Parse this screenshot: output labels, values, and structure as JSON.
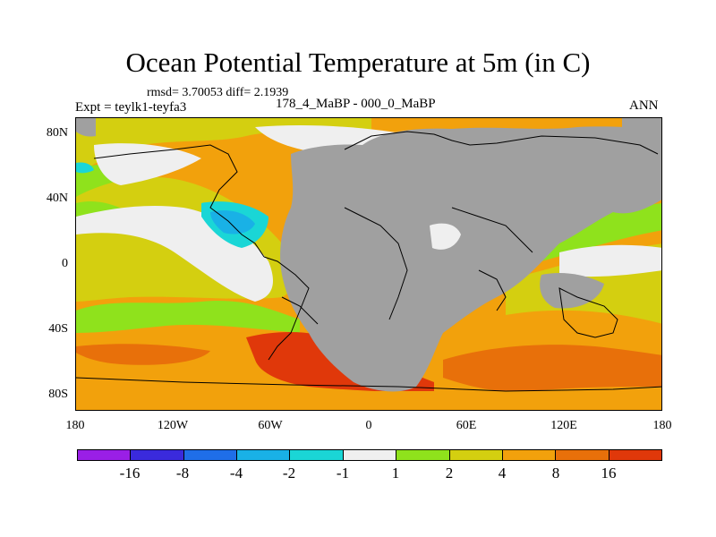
{
  "title": "Ocean Potential Temperature at 5m (in C)",
  "stats": "rmsd= 3.70053 diff= 2.1939",
  "expt": "Expt = teylk1-teyfa3",
  "period": "178_4_MaBP - 000_0_MaBP",
  "season": "ANN",
  "map": {
    "lat_ticks": [
      "80N",
      "40N",
      "0",
      "40S",
      "80S"
    ],
    "lon_ticks": [
      "180",
      "120W",
      "60W",
      "0",
      "60E",
      "120E",
      "180"
    ],
    "land_color": "#a0a0a0",
    "coastline_color": "#000000"
  },
  "colorbar": {
    "levels": [
      "-16",
      "-8",
      "-4",
      "-2",
      "-1",
      "1",
      "2",
      "4",
      "8",
      "16"
    ],
    "colors": [
      "#9a1fe6",
      "#3a2adc",
      "#1f6ee8",
      "#19b1e6",
      "#1ad6d6",
      "#efefef",
      "#8fe21c",
      "#d4cf10",
      "#f2a10c",
      "#e8700a",
      "#e0380a"
    ]
  }
}
